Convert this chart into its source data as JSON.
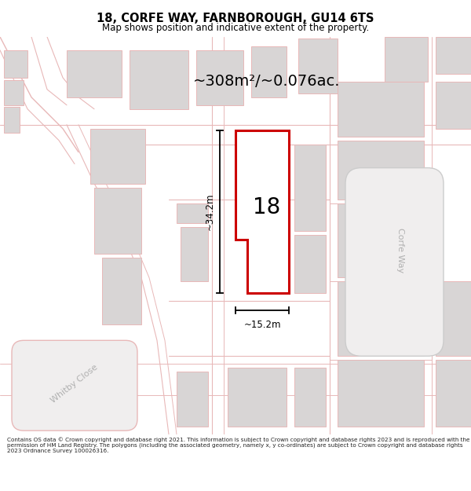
{
  "title_line1": "18, CORFE WAY, FARNBOROUGH, GU14 6TS",
  "title_line2": "Map shows position and indicative extent of the property.",
  "area_text": "~308m²/~0.076ac.",
  "number_label": "18",
  "dim_vertical": "~34.2m",
  "dim_horizontal": "~15.2m",
  "label_whitby": "Whitby Close",
  "label_corfe": "Corfe Way",
  "footer_text": "Contains OS data © Crown copyright and database right 2021. This information is subject to Crown copyright and database rights 2023 and is reproduced with the permission of HM Land Registry. The polygons (including the associated geometry, namely x, y co-ordinates) are subject to Crown copyright and database rights 2023 Ordnance Survey 100026316.",
  "bg_color": "#ffffff",
  "map_bg": "#ffffff",
  "property_fill": "#ffffff",
  "property_edge": "#cc0000",
  "building_fill": "#d8d5d5",
  "road_line_color": "#e8b8b8",
  "dim_color": "#000000",
  "text_color": "#000000",
  "gray_label_color": "#b0b0b0",
  "header_sep_color": "#dddddd"
}
